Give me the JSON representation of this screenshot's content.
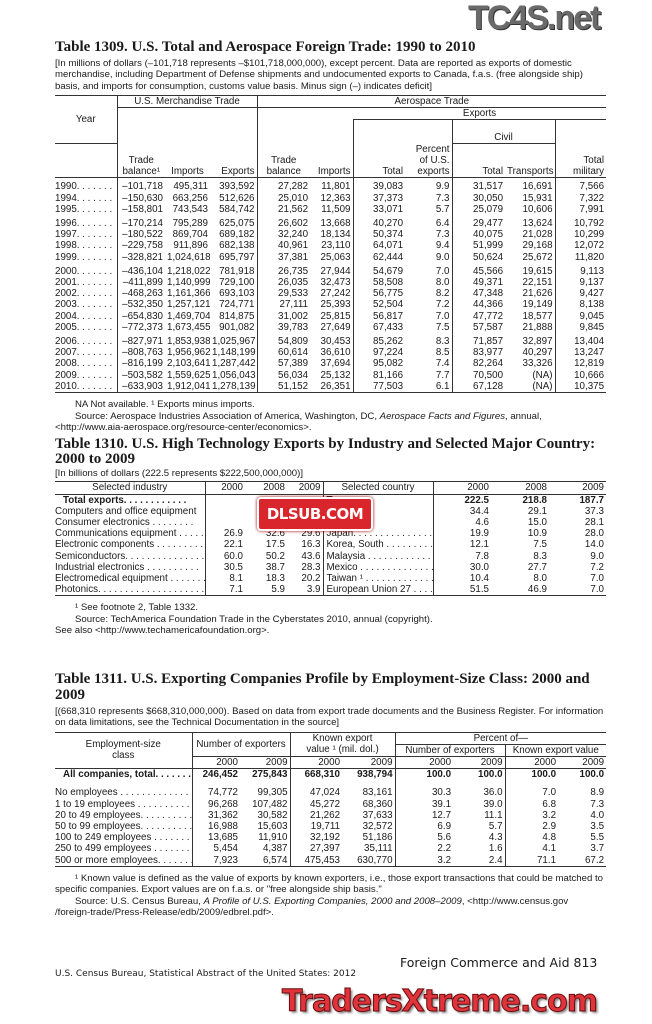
{
  "t1309": {
    "title": "Table 1309. U.S. Total and Aerospace Foreign Trade: 1990 to 2010",
    "note": "[In millions of dollars (–101,718 represents –$101,718,000,000), except percent. Data are reported as exports of domestic merchandise, including Department of Defense shipments and undocumented exports to Canada, f.a.s. (free alongside ship) basis, and imports for consumption, customs value basis. Minus sign (–) indicates deficit]",
    "h_year": "Year",
    "h_merch": "U.S. Merchandise Trade",
    "h_aero": "Aerospace Trade",
    "h_exports": "Exports",
    "h_civil": "Civil",
    "h_tb": "Trade balance¹",
    "h_imports": "Imports",
    "h_exp": "Exports",
    "h_atb": "Trade balance",
    "h_aimports": "Imports",
    "h_total": "Total",
    "h_pct": "Percent of U.S. exports",
    "h_ctotal": "Total",
    "h_transports": "Transports",
    "h_military": "Total military",
    "rows": [
      [
        "1990. . . . . . .",
        "–101,718",
        "495,311",
        "393,592",
        "27,282",
        "11,801",
        "39,083",
        "9.9",
        "31,517",
        "16,691",
        "7,566"
      ],
      [
        "1994. . . . . . .",
        "–150,630",
        "663,256",
        "512,626",
        "25,010",
        "12,363",
        "37,373",
        "7.3",
        "30,050",
        "15,931",
        "7,322"
      ],
      [
        "1995. . . . . . .",
        "–158,801",
        "743,543",
        "584,742",
        "21,562",
        "11,509",
        "33,071",
        "5.7",
        "25,079",
        "10,606",
        "7,991"
      ],
      [
        "1996. . . . . . .",
        "–170,214",
        "795,289",
        "625,075",
        "26,602",
        "13,668",
        "40,270",
        "6.4",
        "29,477",
        "13,624",
        "10,792"
      ],
      [
        "1997. . . . . . .",
        "–180,522",
        "869,704",
        "689,182",
        "32,240",
        "18,134",
        "50,374",
        "7.3",
        "40,075",
        "21,028",
        "10,299"
      ],
      [
        "1998. . . . . . .",
        "–229,758",
        "911,896",
        "682,138",
        "40,961",
        "23,110",
        "64,071",
        "9.4",
        "51,999",
        "29,168",
        "12,072"
      ],
      [
        "1999. . . . . . .",
        "–328,821",
        "1,024,618",
        "695,797",
        "37,381",
        "25,063",
        "62,444",
        "9.0",
        "50,624",
        "25,672",
        "11,820"
      ],
      [
        "2000. . . . . . .",
        "–436,104",
        "1,218,022",
        "781,918",
        "26,735",
        "27,944",
        "54,679",
        "7.0",
        "45,566",
        "19,615",
        "9,113"
      ],
      [
        "2001. . . . . . .",
        "–411,899",
        "1,140,999",
        "729,100",
        "26,035",
        "32,473",
        "58,508",
        "8.0",
        "49,371",
        "22,151",
        "9,137"
      ],
      [
        "2002. . . . . . .",
        "–468,263",
        "1,161,366",
        "693,103",
        "29,533",
        "27,242",
        "56,775",
        "8.2",
        "47,348",
        "21,626",
        "9,427"
      ],
      [
        "2003. . . . . . .",
        "–532,350",
        "1,257,121",
        "724,771",
        "27,111",
        "25,393",
        "52,504",
        "7.2",
        "44,366",
        "19,149",
        "8,138"
      ],
      [
        "2004. . . . . . .",
        "–654,830",
        "1,469,704",
        "814,875",
        "31,002",
        "25,815",
        "56,817",
        "7.0",
        "47,772",
        "18,577",
        "9,045"
      ],
      [
        "2005. . . . . . .",
        "–772,373",
        "1,673,455",
        "901,082",
        "39,783",
        "27,649",
        "67,433",
        "7.5",
        "57,587",
        "21,888",
        "9,845"
      ],
      [
        "2006. . . . . . .",
        "–827,971",
        "1,853,938",
        "1,025,967",
        "54,809",
        "30,453",
        "85,262",
        "8.3",
        "71,857",
        "32,897",
        "13,404"
      ],
      [
        "2007. . . . . . .",
        "–808,763",
        "1,956,962",
        "1,148,199",
        "60,614",
        "36,610",
        "97,224",
        "8.5",
        "83,977",
        "40,297",
        "13,247"
      ],
      [
        "2008. . . . . . .",
        "–816,199",
        "2,103,641",
        "1,287,442",
        "57,389",
        "37,694",
        "95,082",
        "7.4",
        "82,264",
        "33,326",
        "12,819"
      ],
      [
        "2009. . . . . . .",
        "–503,582",
        "1,559,625",
        "1,056,043",
        "56,034",
        "25,132",
        "81,166",
        "7.7",
        "70,500",
        "(NA)",
        "10,666"
      ],
      [
        "2010. . . . . . .",
        "–633,903",
        "1,912,041",
        "1,278,139",
        "51,152",
        "26,351",
        "77,503",
        "6.1",
        "67,128",
        "(NA)",
        "10,375"
      ]
    ],
    "fn1": "NA Not available. ¹ Exports minus imports.",
    "fn2a": "Source: Aerospace Industries Association of America, Washington, DC, ",
    "fn2b": "Aerospace Facts and Figures",
    "fn2c": ", annual, <http://www.aia-aerospace.org/resource-center/economics>."
  },
  "t1310": {
    "title": "Table 1310. U.S. High Technology Exports by Industry and Selected Major Country: 2000 to 2009",
    "note": "[In billions of dollars (222.5 represents $222,500,000,000)]",
    "h_industry": "Selected industry",
    "h_country": "Selected country",
    "years": [
      "2000",
      "2008",
      "2009"
    ],
    "rows": [
      [
        "Total exports. . . . . . . . . . . .",
        "",
        "",
        "",
        "To",
        "222.5",
        "218.8",
        "187.7"
      ],
      [
        "Computers and office equipment",
        "",
        "",
        "",
        "",
        "34.4",
        "29.1",
        "37.3"
      ],
      [
        "Consumer electronics . . . . . . . .",
        "",
        "",
        "",
        "",
        "4.6",
        "15.0",
        "28.1"
      ],
      [
        "Communications equipment . . . . . .",
        "26.9",
        "32.6",
        "29.6",
        "Japan. . . . . . . . . . . . . . .",
        "19.9",
        "10.9",
        "28.0"
      ],
      [
        "Electronic components . . . . . . . . .",
        "22.1",
        "17.5",
        "16.3",
        "Korea, South . . . . . . . . . .",
        "12.1",
        "7.5",
        "14.0"
      ],
      [
        "Semiconductors. . . . . . . . . . . . . . .",
        "60.0",
        "50.2",
        "43.6",
        "Malaysia . . . . . . . . . . . . .",
        "7.8",
        "8.3",
        "9.0"
      ],
      [
        "Industrial electronics . . . . . . . . . .",
        "30.5",
        "38.7",
        "28.3",
        "Mexico . . . . . . . . . . . . . .",
        "30.0",
        "27.7",
        "7.2"
      ],
      [
        "Electromedical equipment . . . . . . .",
        "8.1",
        "18.3",
        "20.2",
        "Taiwan ¹ . . . . . . . . . . . . .",
        "10.4",
        "8.0",
        "7.0"
      ],
      [
        "Photonics. . . . . . . . . . . . . . . . . . . .",
        "7.1",
        "5.9",
        "3.9",
        "European Union 27 . . . . . .",
        "51.5",
        "46.9",
        "7.0"
      ]
    ],
    "fn1": "¹ See footnote 2, Table 1332.",
    "fn2": "Source: TechAmerica Foundation Trade in the Cyberstates 2010, annual (copyright).",
    "fn3": "See also <http://www.techamericafoundation.org>."
  },
  "t1311": {
    "title": "Table 1311. U.S. Exporting Companies Profile by Employment-Size Class: 2000 and 2009",
    "note": "[(668,310 represents $668,310,000,000). Based on data from export trade documents and the Business Register. For information on data limitations, see the Technical Documentation in the source]",
    "h_class": "Employment-size class",
    "h_num": "Number of exporters",
    "h_val": "Known export value ¹ (mil. dol.)",
    "h_pct": "Percent of—",
    "h_pnum": "Number of exporters",
    "h_pval": "Known export value",
    "years": [
      "2000",
      "2009"
    ],
    "rows": [
      [
        "All companies, total. . . . . . .",
        "246,452",
        "275,843",
        "668,310",
        "938,794",
        "100.0",
        "100.0",
        "100.0",
        "100.0"
      ],
      [
        "No employees . . . . . . . . . . . . .",
        "74,772",
        "99,305",
        "47,024",
        "83,161",
        "30.3",
        "36.0",
        "7.0",
        "8.9"
      ],
      [
        "1 to 19 employees . . . . . . . . . .",
        "96,268",
        "107,482",
        "45,272",
        "68,360",
        "39.1",
        "39.0",
        "6.8",
        "7.3"
      ],
      [
        "20 to 49 employees. . . . . . . . . .",
        "31,362",
        "30,582",
        "21,262",
        "37,633",
        "12.7",
        "11.1",
        "3.2",
        "4.0"
      ],
      [
        "50 to 99 employees. . . . . . . . . .",
        "16,988",
        "15,603",
        "19,711",
        "32,572",
        "6.9",
        "5.7",
        "2.9",
        "3.5"
      ],
      [
        "100 to 249 employees . . . . . . . .",
        "13,685",
        "11,910",
        "32,192",
        "51,186",
        "5.6",
        "4.3",
        "4.8",
        "5.5"
      ],
      [
        "250 to 499 employees . . . . . . . .",
        "5,454",
        "4,387",
        "27,397",
        "35,111",
        "2.2",
        "1.6",
        "4.1",
        "3.7"
      ],
      [
        "500 or more employees. . . . . . .",
        "7,923",
        "6,574",
        "475,453",
        "630,770",
        "3.2",
        "2.4",
        "71.1",
        "67.2"
      ]
    ],
    "fn1": "¹ Known value is defined as the value of exports by known exporters, i.e., those export transactions that could be matched to specific companies. Export values are on f.a.s. or \"free alongside ship basis.\"",
    "fn2a": "Source: U.S. Census Bureau, ",
    "fn2b": "A Profile of U.S. Exporting Companies, 2000 and 2008–2009",
    "fn2c": ", <http://www.census.gov /foreign-trade/Press-Release/edb/2009/edbrel.pdf>."
  },
  "footer": {
    "section": "Foreign Commerce and Aid  813",
    "source": "U.S. Census Bureau, Statistical Abstract of the United States: 2012"
  },
  "watermarks": {
    "top": "TC4S.net",
    "middle": "DLSUB.COM",
    "bottom": "TradersXtreme.com"
  }
}
